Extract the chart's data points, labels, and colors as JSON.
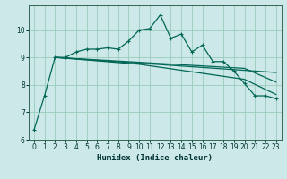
{
  "xlabel": "Humidex (Indice chaleur)",
  "bg_color": "#cce8e8",
  "grid_color": "#99ccbb",
  "line_color": "#006655",
  "xlim": [
    -0.5,
    23.5
  ],
  "ylim": [
    6.0,
    10.9
  ],
  "yticks": [
    6,
    7,
    8,
    9,
    10
  ],
  "xticks": [
    0,
    1,
    2,
    3,
    4,
    5,
    6,
    7,
    8,
    9,
    10,
    11,
    12,
    13,
    14,
    15,
    16,
    17,
    18,
    19,
    20,
    21,
    22,
    23
  ],
  "series_main": [
    [
      0,
      6.35
    ],
    [
      1,
      7.6
    ],
    [
      2,
      9.0
    ],
    [
      3,
      9.0
    ],
    [
      4,
      9.2
    ],
    [
      5,
      9.3
    ],
    [
      6,
      9.3
    ],
    [
      7,
      9.35
    ],
    [
      8,
      9.3
    ],
    [
      9,
      9.6
    ],
    [
      10,
      10.0
    ],
    [
      11,
      10.05
    ],
    [
      12,
      10.55
    ],
    [
      13,
      9.7
    ],
    [
      14,
      9.85
    ],
    [
      15,
      9.2
    ],
    [
      16,
      9.45
    ],
    [
      17,
      8.85
    ],
    [
      18,
      8.85
    ],
    [
      19,
      8.5
    ],
    [
      20,
      8.05
    ],
    [
      21,
      7.6
    ],
    [
      22,
      7.6
    ],
    [
      23,
      7.5
    ]
  ],
  "series_smooth1": [
    [
      2,
      9.0
    ],
    [
      23,
      8.45
    ]
  ],
  "series_smooth2": [
    [
      2,
      9.0
    ],
    [
      20,
      8.6
    ],
    [
      23,
      8.1
    ]
  ],
  "series_smooth3": [
    [
      2,
      9.0
    ],
    [
      10,
      8.75
    ],
    [
      20,
      8.2
    ],
    [
      23,
      7.65
    ]
  ]
}
